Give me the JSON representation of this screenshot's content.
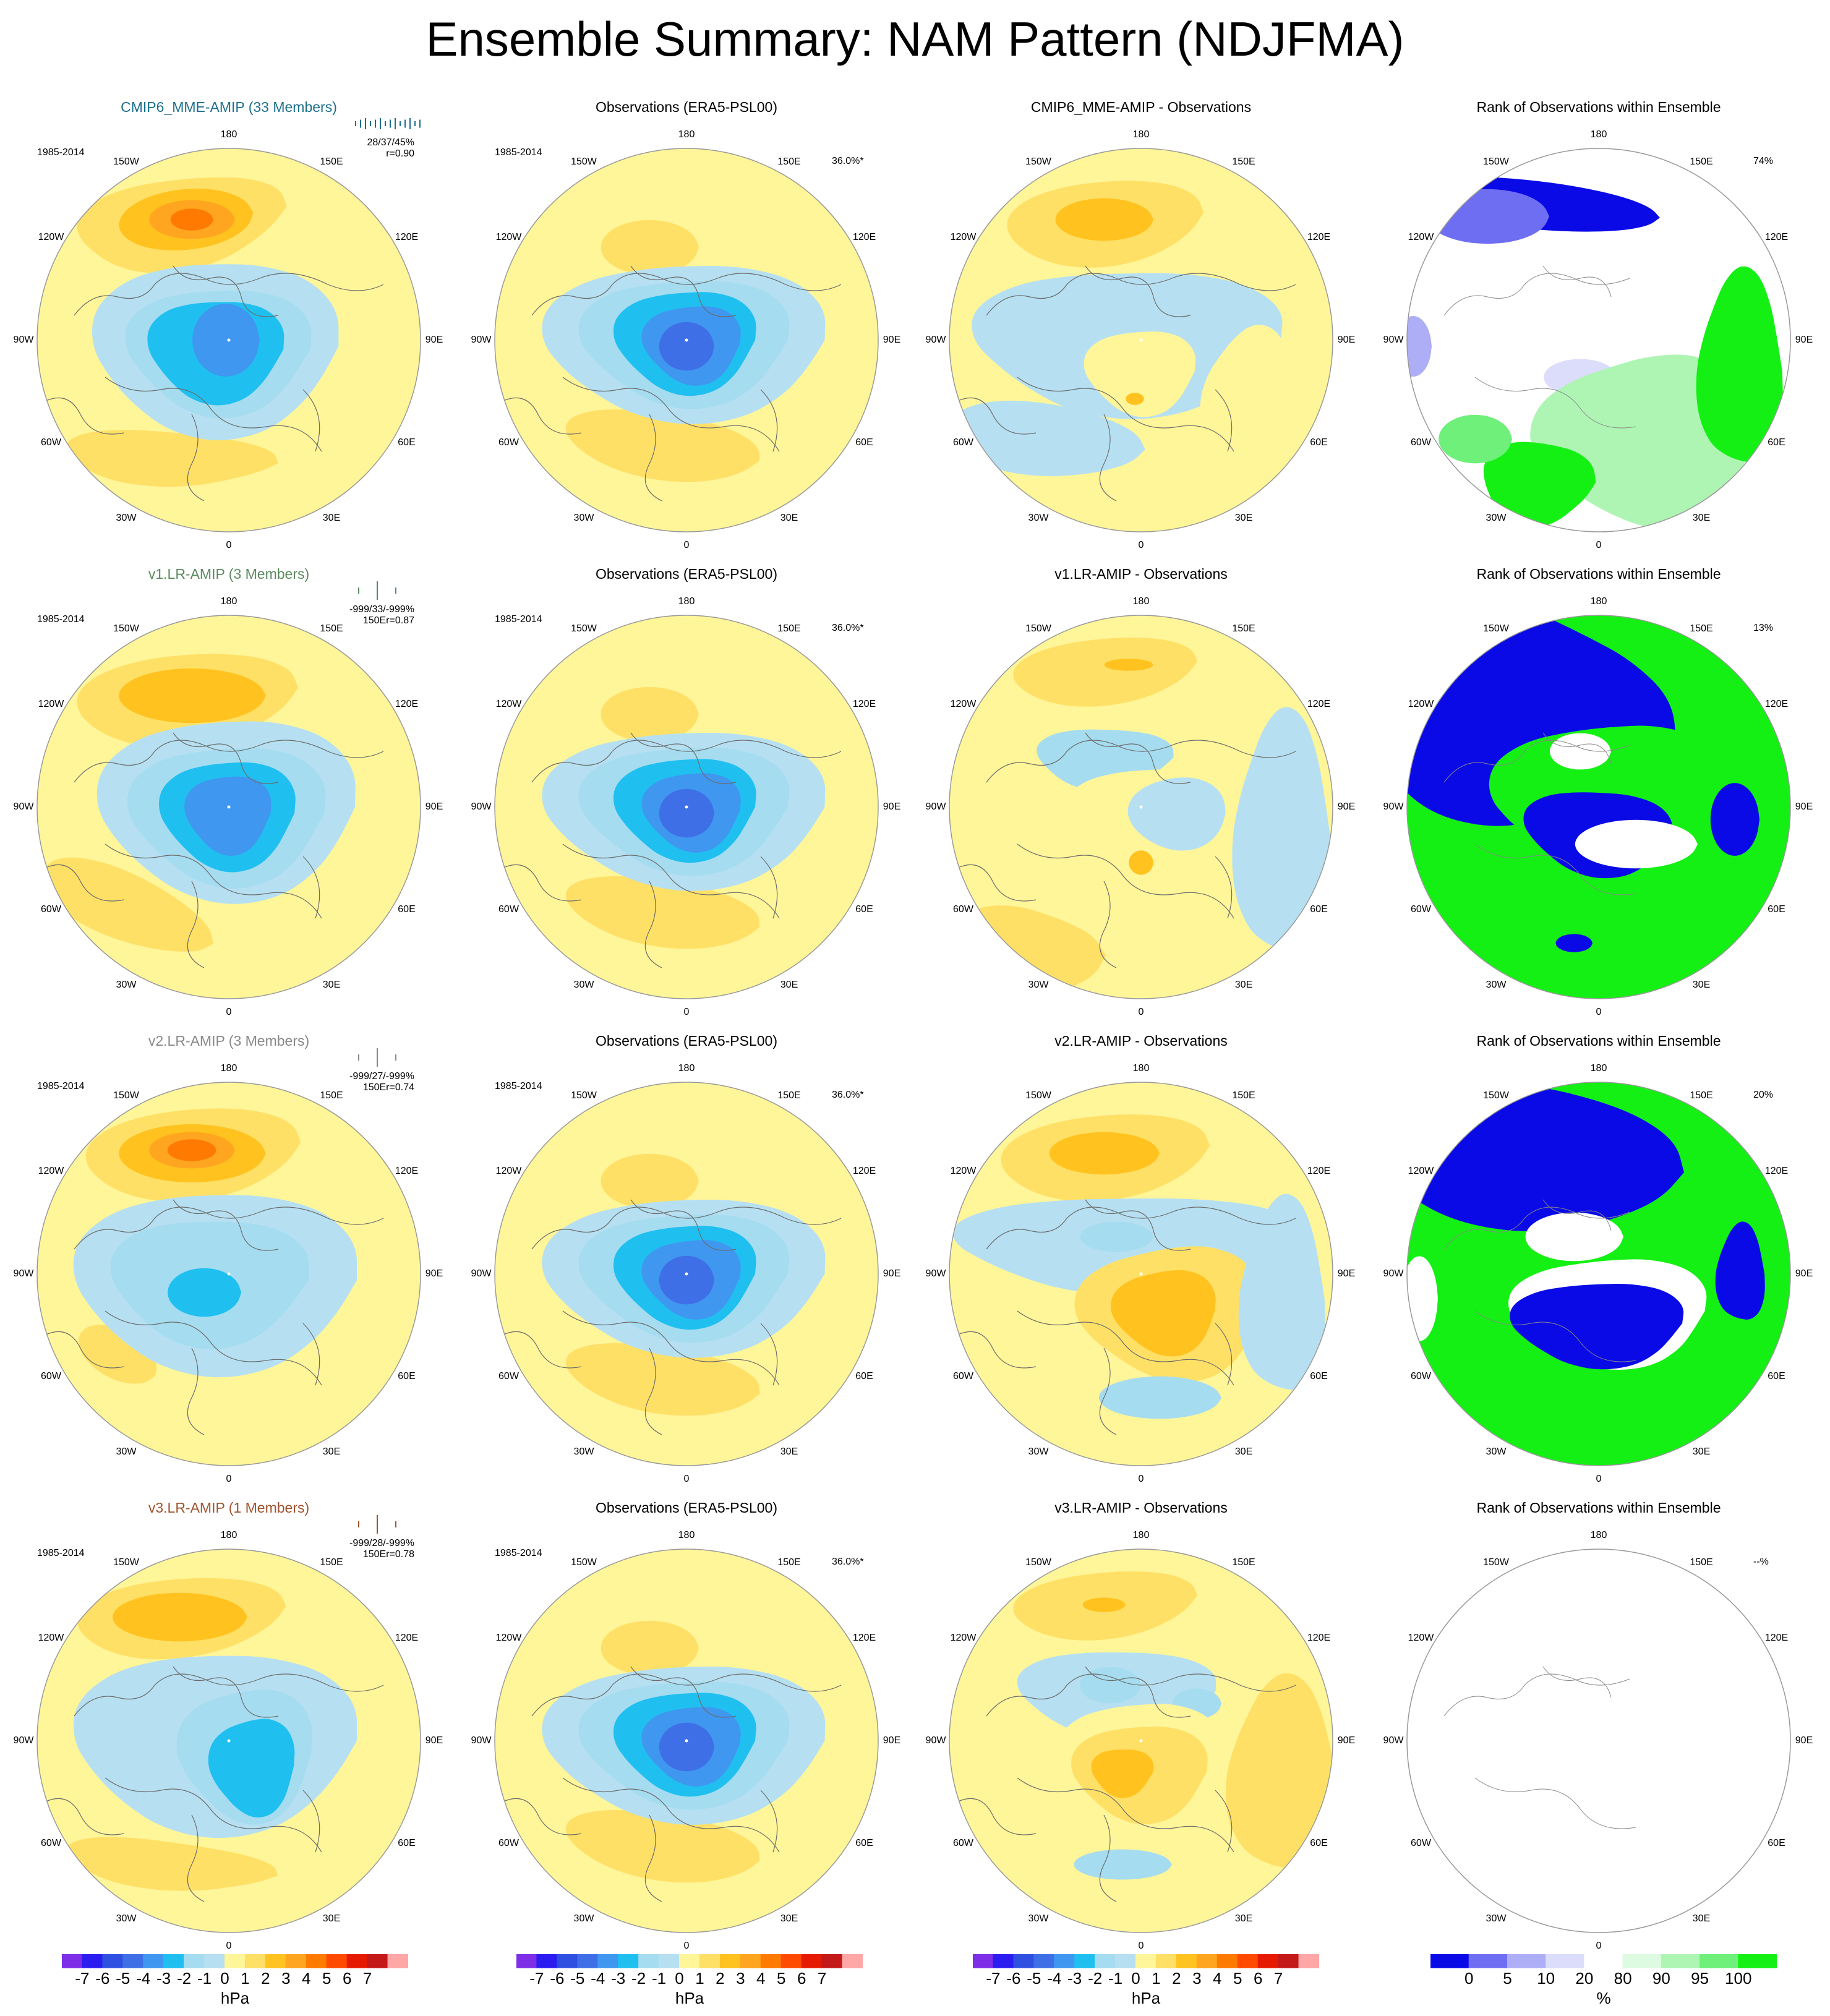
{
  "title": "Ensemble Summary: NAM Pattern (NDJFMA)",
  "colors": {
    "amip_title": "#1d6f8c",
    "v1_title": "#5a8a5f",
    "v2_title": "#888888",
    "v3_title": "#a0522d"
  },
  "longitude_labels": [
    "180",
    "150W",
    "150E",
    "120W",
    "120E",
    "90W",
    "90E",
    "60W",
    "60E",
    "30W",
    "30E",
    "0"
  ],
  "rows": [
    {
      "model_title": "CMIP6_MME-AMIP (33 Members)",
      "model_color": "amip_title",
      "period": "1985-2014",
      "stats_line1": "28/37/45%",
      "stats_line2": "r=0.90",
      "obs_title": "Observations (ERA5-PSL00)",
      "obs_period": "1985-2014",
      "obs_pct": "36.0%*",
      "diff_title": "CMIP6_MME-AMIP - Observations",
      "rank_title": "Rank of Observations within Ensemble",
      "rank_pct": "74%"
    },
    {
      "model_title": "v1.LR-AMIP (3 Members)",
      "model_color": "v1_title",
      "period": "1985-2014",
      "stats_line1": "-999/33/-999%",
      "stats_line2": "150Er=0.87",
      "obs_title": "Observations (ERA5-PSL00)",
      "obs_period": "1985-2014",
      "obs_pct": "36.0%*",
      "diff_title": "v1.LR-AMIP - Observations",
      "rank_title": "Rank of Observations within Ensemble",
      "rank_pct": "13%"
    },
    {
      "model_title": "v2.LR-AMIP (3 Members)",
      "model_color": "v2_title",
      "period": "1985-2014",
      "stats_line1": "-999/27/-999%",
      "stats_line2": "150Er=0.74",
      "obs_title": "Observations (ERA5-PSL00)",
      "obs_period": "1985-2014",
      "obs_pct": "36.0%*",
      "diff_title": "v2.LR-AMIP - Observations",
      "rank_title": "Rank of Observations within Ensemble",
      "rank_pct": "20%"
    },
    {
      "model_title": "v3.LR-AMIP (1 Members)",
      "model_color": "v3_title",
      "period": "1985-2014",
      "stats_line1": "-999/28/-999%",
      "stats_line2": "150Er=0.78",
      "obs_title": "Observations (ERA5-PSL00)",
      "obs_period": "1985-2014",
      "obs_pct": "36.0%*",
      "diff_title": "v3.LR-AMIP - Observations",
      "rank_title": "Rank of Observations within Ensemble",
      "rank_pct": "--%"
    }
  ],
  "colorbar_hpa": {
    "labels": [
      "-7",
      "-6",
      "-5",
      "-4",
      "-3",
      "-2",
      "-1",
      "0",
      "1",
      "2",
      "3",
      "4",
      "5",
      "6",
      "7"
    ],
    "unit": "hPa",
    "colors": [
      "#7d2ee6",
      "#2b1cf0",
      "#2f4fe0",
      "#3f6fe6",
      "#3f97f0",
      "#1fc0f0",
      "#a6dcf0",
      "#b6e0f2",
      "#fff599",
      "#ffe066",
      "#ffc21f",
      "#ffa51f",
      "#ff7a00",
      "#ff4a00",
      "#e61a00",
      "#c41919",
      "#ffa6a6"
    ]
  },
  "colorbar_rank": {
    "labels": [
      "0",
      "5",
      "10",
      "20",
      "80",
      "90",
      "95",
      "100"
    ],
    "unit": "%",
    "colors": [
      "#0a0ae6",
      "#6e6ef2",
      "#aeaef7",
      "#dcdcfb",
      "#ffffff",
      "#dcfbe0",
      "#aef5b4",
      "#6ef07a",
      "#14f014"
    ]
  },
  "chart_data": {
    "type": "heatmap",
    "title": "Ensemble Summary: NAM Pattern (NDJFMA)",
    "projection": "north polar stereographic",
    "panels_per_row": [
      "model NAM pattern",
      "observations NAM pattern",
      "model minus observations",
      "rank of observations within ensemble"
    ],
    "color_scale_hpa": [
      -7,
      -6,
      -5,
      -4,
      -3,
      -2,
      -1,
      0,
      1,
      2,
      3,
      4,
      5,
      6,
      7
    ],
    "color_scale_rank_percent": [
      0,
      5,
      10,
      20,
      80,
      90,
      95,
      100
    ]
  }
}
